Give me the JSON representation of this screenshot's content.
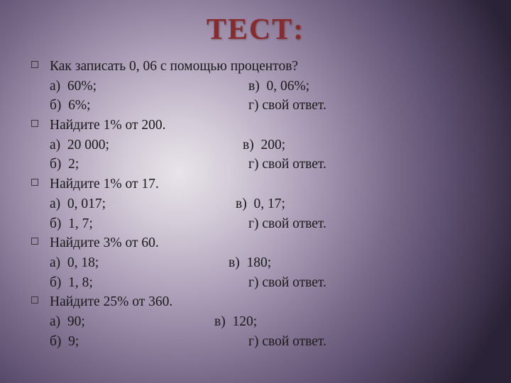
{
  "title": "ТЕСТ:",
  "style": {
    "title_color": "#8b2a2a",
    "title_fontsize": 42,
    "body_fontsize": 19.5,
    "body_color": "#1a1a1a",
    "bullet_border": "#3a3a3a",
    "background_gradient": [
      "#e8e4ea",
      "#d4ccd8",
      "#b8acc2",
      "#9a8ba8",
      "#7a6b8a",
      "#5e5070",
      "#413650",
      "#2a2236"
    ],
    "font_family": "Times New Roman"
  },
  "q1": {
    "prompt": "Как записать 0, 06 с помощью процентов?",
    "a": "а)  60%;",
    "b": "б)  6%;",
    "v": "в)  0, 06%;",
    "g": "г) свой ответ."
  },
  "q2": {
    "prompt": "Найдите 1% от 200.",
    "a": "а)  20 000;",
    "b": "б)  2;",
    "v": "в)  200;",
    "g": "г) свой ответ."
  },
  "q3": {
    "prompt": "Найдите 1% от 17.",
    "a": "а)  0, 017;",
    "b": "б)  1, 7;",
    "v": "в)  0, 17;",
    "g": "г) свой ответ."
  },
  "q4": {
    "prompt": "Найдите 3% от 60.",
    "a": "а)  0, 18;",
    "b": "б)  1, 8;",
    "v": "в)  180;",
    "g": "г) свой ответ."
  },
  "q5": {
    "prompt": "Найдите 25% от 360.",
    "a": "а)  90;",
    "b": "б)  9;",
    "v": "в)  120;",
    "g": "г) свой ответ."
  },
  "offsets": {
    "q1_v": "280px",
    "q1_g": "280px",
    "q2_v": "272px",
    "q2_g": "280px",
    "q3_v": "262px",
    "q3_g": "280px",
    "q4_v": "252px",
    "q4_g": "280px",
    "q5_v": "232px",
    "q5_g": "280px"
  }
}
